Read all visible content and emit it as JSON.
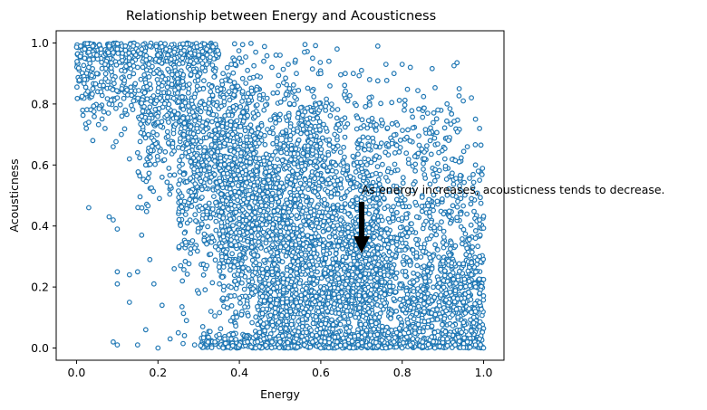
{
  "chart_data": {
    "type": "scatter",
    "title": "Relationship between Energy and Acousticness",
    "xlabel": "Energy",
    "ylabel": "Acousticness",
    "xlim": [
      -0.05,
      1.05
    ],
    "ylim": [
      -0.04,
      1.04
    ],
    "xticks": [
      0.0,
      0.2,
      0.4,
      0.6,
      0.8,
      1.0
    ],
    "xtick_labels": [
      "0.0",
      "0.2",
      "0.4",
      "0.6",
      "0.8",
      "1.0"
    ],
    "yticks": [
      0.0,
      0.2,
      0.4,
      0.6,
      0.8,
      1.0
    ],
    "ytick_labels": [
      "0.0",
      "0.2",
      "0.4",
      "0.6",
      "0.8",
      "1.0"
    ],
    "grid": false,
    "marker": "open-circle",
    "marker_color": "#1f77b4",
    "points": [
      [
        0.01,
        0.99
      ],
      [
        0.02,
        0.98
      ],
      [
        0.03,
        0.97
      ],
      [
        0.02,
        0.95
      ],
      [
        0.04,
        0.99
      ],
      [
        0.05,
        0.96
      ],
      [
        0.06,
        0.98
      ],
      [
        0.08,
        0.99
      ],
      [
        0.1,
        0.98
      ],
      [
        0.12,
        0.99
      ],
      [
        0.14,
        0.97
      ],
      [
        0.16,
        0.98
      ],
      [
        0.18,
        0.99
      ],
      [
        0.2,
        0.96
      ],
      [
        0.22,
        0.98
      ],
      [
        0.24,
        0.97
      ],
      [
        0.26,
        0.95
      ],
      [
        0.28,
        0.94
      ],
      [
        0.3,
        0.96
      ],
      [
        0.32,
        0.93
      ],
      [
        0.03,
        0.92
      ],
      [
        0.05,
        0.9
      ],
      [
        0.07,
        0.93
      ],
      [
        0.09,
        0.88
      ],
      [
        0.11,
        0.91
      ],
      [
        0.13,
        0.89
      ],
      [
        0.15,
        0.92
      ],
      [
        0.17,
        0.87
      ],
      [
        0.19,
        0.9
      ],
      [
        0.21,
        0.86
      ],
      [
        0.02,
        0.88
      ],
      [
        0.04,
        0.85
      ],
      [
        0.06,
        0.84
      ],
      [
        0.08,
        0.8
      ],
      [
        0.1,
        0.82
      ],
      [
        0.12,
        0.78
      ],
      [
        0.14,
        0.81
      ],
      [
        0.16,
        0.76
      ],
      [
        0.18,
        0.79
      ],
      [
        0.2,
        0.74
      ],
      [
        0.03,
        0.74
      ],
      [
        0.04,
        0.68
      ],
      [
        0.07,
        0.72
      ],
      [
        0.09,
        0.66
      ],
      [
        0.11,
        0.7
      ],
      [
        0.13,
        0.62
      ],
      [
        0.15,
        0.64
      ],
      [
        0.17,
        0.6
      ],
      [
        0.19,
        0.68
      ],
      [
        0.21,
        0.56
      ],
      [
        0.03,
        0.46
      ],
      [
        0.08,
        0.43
      ],
      [
        0.1,
        0.39
      ],
      [
        0.09,
        0.42
      ],
      [
        0.1,
        0.25
      ],
      [
        0.1,
        0.21
      ],
      [
        0.09,
        0.02
      ],
      [
        0.1,
        0.01
      ],
      [
        0.13,
        0.24
      ],
      [
        0.13,
        0.15
      ],
      [
        0.15,
        0.25
      ],
      [
        0.15,
        0.01
      ],
      [
        0.16,
        0.37
      ],
      [
        0.17,
        0.06
      ],
      [
        0.18,
        0.29
      ],
      [
        0.19,
        0.21
      ],
      [
        0.2,
        0.0
      ],
      [
        0.21,
        0.14
      ],
      [
        0.23,
        0.03
      ],
      [
        0.24,
        0.26
      ],
      [
        0.25,
        0.05
      ],
      [
        0.26,
        0.22
      ],
      [
        0.27,
        0.09
      ],
      [
        0.28,
        0.31
      ],
      [
        0.29,
        0.01
      ],
      [
        0.3,
        0.18
      ],
      [
        0.31,
        0.07
      ],
      [
        0.32,
        0.27
      ],
      [
        0.33,
        0.12
      ],
      [
        0.34,
        0.02
      ],
      [
        0.36,
        0.9
      ],
      [
        0.38,
        0.93
      ],
      [
        0.4,
        0.95
      ],
      [
        0.42,
        0.91
      ],
      [
        0.44,
        0.97
      ],
      [
        0.46,
        0.94
      ],
      [
        0.48,
        0.92
      ],
      [
        0.5,
        0.96
      ],
      [
        0.52,
        0.93
      ],
      [
        0.54,
        0.9
      ],
      [
        0.56,
        0.97
      ],
      [
        0.58,
        0.95
      ],
      [
        0.6,
        0.9
      ],
      [
        0.62,
        0.94
      ],
      [
        0.64,
        0.98
      ],
      [
        0.66,
        0.9
      ],
      [
        0.68,
        0.9
      ],
      [
        0.7,
        0.91
      ],
      [
        0.72,
        0.88
      ],
      [
        0.74,
        0.99
      ],
      [
        0.76,
        0.93
      ],
      [
        0.78,
        0.9
      ],
      [
        0.8,
        0.93
      ],
      [
        0.82,
        0.92
      ],
      [
        0.94,
        0.85
      ],
      [
        0.97,
        0.82
      ],
      [
        0.95,
        0.81
      ],
      [
        0.98,
        0.75
      ],
      [
        0.99,
        0.72
      ],
      [
        0.96,
        0.66
      ],
      [
        0.98,
        0.6
      ],
      [
        0.99,
        0.55
      ],
      [
        0.97,
        0.49
      ],
      [
        0.99,
        0.42
      ],
      [
        0.98,
        0.36
      ],
      [
        0.99,
        0.3
      ],
      [
        0.97,
        0.24
      ],
      [
        0.99,
        0.18
      ],
      [
        0.98,
        0.12
      ],
      [
        0.99,
        0.07
      ],
      [
        0.99,
        0.03
      ],
      [
        0.98,
        0.01
      ],
      [
        1.0,
        0.0
      ],
      [
        0.96,
        0.02
      ],
      [
        0.93,
        0.01
      ],
      [
        0.9,
        0.03
      ],
      [
        0.88,
        0.0
      ],
      [
        0.85,
        0.02
      ],
      [
        0.82,
        0.01
      ],
      [
        0.8,
        0.0
      ],
      [
        0.36,
        0.0
      ],
      [
        0.4,
        0.01
      ],
      [
        0.44,
        0.0
      ],
      [
        0.48,
        0.02
      ],
      [
        0.52,
        0.0
      ],
      [
        0.56,
        0.01
      ],
      [
        0.6,
        0.0
      ],
      [
        0.64,
        0.02
      ],
      [
        0.68,
        0.0
      ],
      [
        0.72,
        0.01
      ],
      [
        0.76,
        0.0
      ],
      [
        0.78,
        0.02
      ],
      [
        0.38,
        0.03
      ],
      [
        0.42,
        0.02
      ],
      [
        0.46,
        0.03
      ],
      [
        0.5,
        0.02
      ],
      [
        0.54,
        0.03
      ],
      [
        0.58,
        0.02
      ],
      [
        0.62,
        0.03
      ],
      [
        0.66,
        0.01
      ]
    ],
    "density_regions": [
      {
        "x": [
          0.0,
          0.35
        ],
        "y_center": 0.97,
        "y_spread": 0.04,
        "count": 260
      },
      {
        "x": [
          0.0,
          0.3
        ],
        "y_center": 0.85,
        "y_spread": 0.12,
        "count": 300
      },
      {
        "x": [
          0.15,
          0.45
        ],
        "y_center": 0.7,
        "y_spread": 0.22,
        "count": 500
      },
      {
        "x": [
          0.25,
          0.6
        ],
        "y_center": 0.55,
        "y_spread": 0.3,
        "count": 900
      },
      {
        "x": [
          0.35,
          0.75
        ],
        "y_center": 0.35,
        "y_spread": 0.3,
        "count": 1200
      },
      {
        "x": [
          0.45,
          1.0
        ],
        "y_center": 0.15,
        "y_spread": 0.18,
        "count": 1400
      },
      {
        "x": [
          0.6,
          1.0
        ],
        "y_center": 0.4,
        "y_spread": 0.25,
        "count": 600
      },
      {
        "x": [
          0.3,
          1.0
        ],
        "y_center": 0.02,
        "y_spread": 0.03,
        "count": 500
      },
      {
        "x": [
          0.5,
          0.95
        ],
        "y_center": 0.7,
        "y_spread": 0.15,
        "count": 250
      }
    ],
    "annotation": {
      "text": "As energy increases, acousticness tends to decrease.",
      "xy": [
        0.7,
        0.32
      ],
      "xytext": [
        0.7,
        0.5
      ]
    }
  }
}
